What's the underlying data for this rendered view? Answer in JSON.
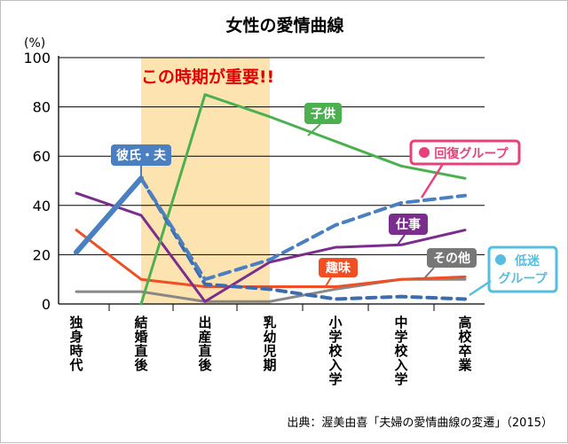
{
  "chart_data": {
    "type": "line",
    "title": "女性の愛情曲線",
    "y_unit": "(%)",
    "ylim": [
      0,
      100
    ],
    "y_ticks": [
      "0",
      "20",
      "40",
      "60",
      "80",
      "100"
    ],
    "grid": true,
    "categories": [
      "独身時代",
      "結婚直後",
      "出産直後",
      "乳幼児期",
      "小学校入学",
      "中学校入学",
      "高校卒業"
    ],
    "highlight": {
      "label": "この時期が重要!!",
      "from": "結婚直後",
      "to": "乳幼児期",
      "color": "#fde3b0",
      "label_color": "#e60000"
    },
    "series": [
      {
        "name": "彼氏・夫",
        "color": "#4a7fc1",
        "style": "solid-then-dashed",
        "values": [
          21,
          51,
          10,
          18,
          32,
          41,
          44
        ],
        "label_bg": "#4a7fc1"
      },
      {
        "name": "子供",
        "color": "#4caf50",
        "values": [
          0,
          0,
          85,
          76,
          66,
          56,
          51
        ],
        "label_bg": "#4caf50"
      },
      {
        "name": "仕事",
        "color": "#7b2d8e",
        "values": [
          45,
          36,
          1,
          17,
          23,
          24,
          30
        ],
        "label_bg": "#7b2d8e"
      },
      {
        "name": "趣味",
        "color": "#f04e23",
        "values": [
          30,
          10,
          7,
          7,
          7,
          10,
          11
        ],
        "label_bg": "#f04e23"
      },
      {
        "name": "その他",
        "color": "#888888",
        "values": [
          5,
          5,
          1,
          1,
          6,
          10,
          10
        ],
        "label_bg": "#777777"
      },
      {
        "name": "低迷グループ",
        "color": "#3b6cb0",
        "style": "dashed",
        "values": [
          null,
          null,
          8,
          6,
          2,
          3,
          2
        ],
        "label_bg": "#55bde0"
      }
    ],
    "callouts": {
      "recover": {
        "text": "回復グループ",
        "color": "#e8417a"
      },
      "decline": {
        "line1": "低迷",
        "line2": "グループ",
        "color": "#55bde0"
      }
    }
  },
  "source": "出典：渥美由喜「夫婦の愛情曲線の変遷」（2015）"
}
